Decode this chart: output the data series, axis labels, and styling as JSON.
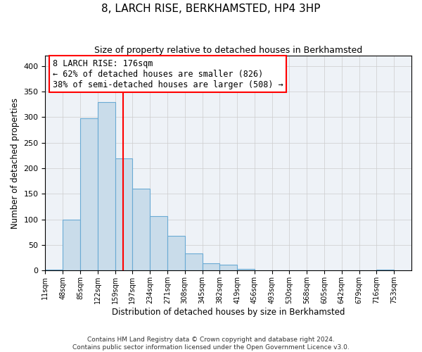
{
  "title": "8, LARCH RISE, BERKHAMSTED, HP4 3HP",
  "subtitle": "Size of property relative to detached houses in Berkhamsted",
  "xlabel": "Distribution of detached houses by size in Berkhamsted",
  "ylabel": "Number of detached properties",
  "bin_edges": [
    11,
    48,
    85,
    122,
    159,
    196,
    233,
    270,
    307,
    344,
    381,
    418,
    455,
    492,
    529,
    566,
    603,
    640,
    677,
    714,
    751,
    788
  ],
  "bin_labels": [
    "11sqm",
    "48sqm",
    "85sqm",
    "122sqm",
    "159sqm",
    "197sqm",
    "234sqm",
    "271sqm",
    "308sqm",
    "345sqm",
    "382sqm",
    "419sqm",
    "456sqm",
    "493sqm",
    "530sqm",
    "568sqm",
    "605sqm",
    "642sqm",
    "679sqm",
    "716sqm",
    "753sqm"
  ],
  "counts": [
    2,
    99,
    298,
    330,
    219,
    160,
    106,
    68,
    33,
    15,
    11,
    4,
    1,
    0,
    0,
    0,
    0,
    0,
    0,
    2,
    0
  ],
  "bar_facecolor": "#c9dcea",
  "bar_edgecolor": "#6aaad4",
  "vline_x": 176,
  "vline_color": "red",
  "annotation_title": "8 LARCH RISE: 176sqm",
  "annotation_line1": "← 62% of detached houses are smaller (826)",
  "annotation_line2": "38% of semi-detached houses are larger (508) →",
  "annotation_box_edgecolor": "red",
  "ylim": [
    0,
    420
  ],
  "yticks": [
    0,
    50,
    100,
    150,
    200,
    250,
    300,
    350,
    400
  ],
  "grid_color": "#cccccc",
  "background_color": "#eef2f7",
  "footer_line1": "Contains HM Land Registry data © Crown copyright and database right 2024.",
  "footer_line2": "Contains public sector information licensed under the Open Government Licence v3.0."
}
